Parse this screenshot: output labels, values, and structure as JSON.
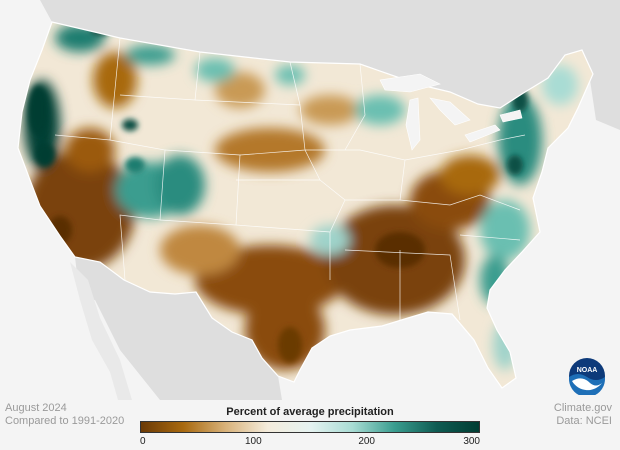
{
  "header": {},
  "map": {
    "title": "Percent of average precipitation",
    "date": "August 2024",
    "comparison": "Compared to 1991-2020",
    "credit": "Climate.gov",
    "data_source": "Data: NCEI",
    "legend": {
      "min": 0,
      "max": 300,
      "ticks": [
        "0",
        "100",
        "200",
        "300"
      ],
      "tick_values": [
        0,
        100,
        200,
        300
      ],
      "colors": [
        "#6b3a06",
        "#a8690f",
        "#d8b27a",
        "#f4ecdc",
        "#e6f3f1",
        "#a9dcd4",
        "#3a9d8f",
        "#0f5b52",
        "#003d33"
      ]
    },
    "logo_text": "NOAA",
    "colors": {
      "dry": "#a8690f",
      "very_dry": "#7a4208",
      "normal": "#f2ebdd",
      "wet": "#6bbfb1",
      "very_wet": "#0b4f45",
      "land_outside": "#dedede",
      "water": "#f4f4f4",
      "noaa_blue": "#1e6fb7"
    }
  }
}
